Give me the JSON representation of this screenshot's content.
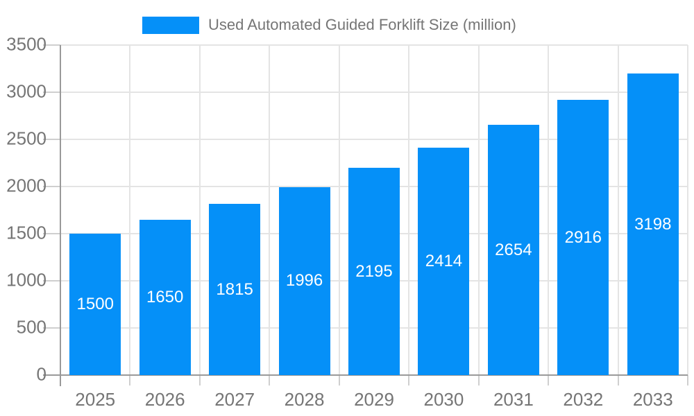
{
  "colors": {
    "bar": "#0590f8",
    "grid": "#e4e4e4",
    "tick": "#cfcfcf",
    "axis": "#999999",
    "tick_text": "#757575",
    "bar_label": "#ffffff",
    "background": "#ffffff"
  },
  "chart_data": {
    "type": "bar",
    "legend_label": "Used Automated Guided Forklift Size (million)",
    "title": "",
    "xlabel": "",
    "ylabel": "",
    "categories": [
      "2025",
      "2026",
      "2027",
      "2028",
      "2029",
      "2030",
      "2031",
      "2032",
      "2033"
    ],
    "values": [
      1500,
      1650,
      1815,
      1996,
      2195,
      2414,
      2654,
      2916,
      3198
    ],
    "ylim": [
      0,
      3500
    ],
    "yticks": [
      0,
      500,
      1000,
      1500,
      2000,
      2500,
      3000,
      3500
    ],
    "grid": true,
    "legend_position": "top",
    "value_labels": "inside-center"
  }
}
